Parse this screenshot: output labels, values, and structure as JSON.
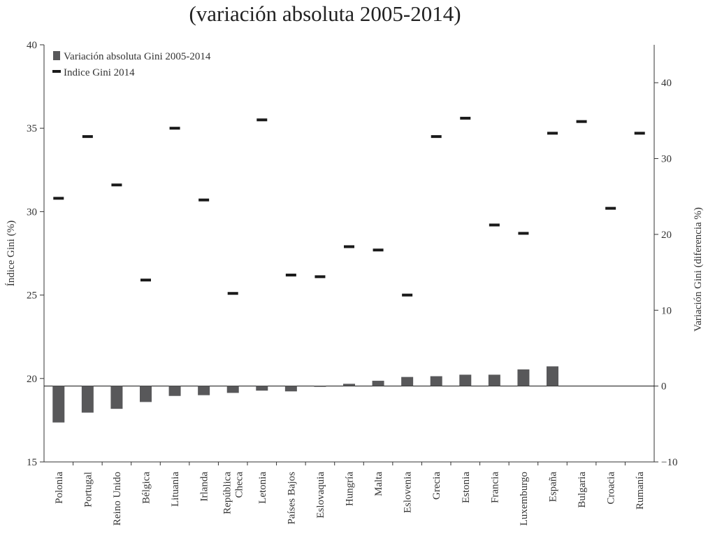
{
  "chart_data": {
    "type": "bar",
    "title": "(variación absoluta 2005-2014)",
    "ylabel_left": "Índice Gini (%)",
    "ylabel_right": "Variación Gini (diferencia %)",
    "left_axis": {
      "range": [
        15,
        40
      ],
      "ticks": [
        "15",
        "20",
        "25",
        "30",
        "35",
        "40"
      ]
    },
    "right_axis": {
      "range": [
        -10,
        45
      ],
      "ticks": [
        "−10",
        "0",
        "10",
        "20",
        "30",
        "40"
      ]
    },
    "legend": {
      "placement": "top-left",
      "bar_label": "Variación absoluta Gini 2005-2014",
      "marker_label": "Indice Gini 2014"
    },
    "categories": [
      "Polonia",
      "Portugal",
      "Reino Unido",
      "Bélgica",
      "Lituania",
      "Irlanda",
      "República Checa",
      "Letonia",
      "Países Bajos",
      "Eslovaquia",
      "Hungría",
      "Malta",
      "Eslovenia",
      "Grecia",
      "Estonia",
      "Francia",
      "Luxemburgo",
      "España",
      "Bulgaria",
      "Croacia",
      "Rumanía"
    ],
    "category_lines": [
      [
        "Polonia"
      ],
      [
        "Portugal"
      ],
      [
        "Reino Unido"
      ],
      [
        "Bélgica"
      ],
      [
        "Lituania"
      ],
      [
        "Irlanda"
      ],
      [
        "República",
        "Checa"
      ],
      [
        "Letonia"
      ],
      [
        "Países Bajos"
      ],
      [
        "Eslovaquia"
      ],
      [
        "Hungría"
      ],
      [
        "Malta"
      ],
      [
        "Eslovenia"
      ],
      [
        "Grecia"
      ],
      [
        "Estonia"
      ],
      [
        "Francia"
      ],
      [
        "Luxemburgo"
      ],
      [
        "España"
      ],
      [
        "Bulgaria"
      ],
      [
        "Croacia"
      ],
      [
        "Rumanía"
      ]
    ],
    "series": [
      {
        "name": "Variación absoluta Gini 2005-2014",
        "axis": "right",
        "kind": "bar",
        "values": [
          -4.8,
          -3.5,
          -3.0,
          -2.1,
          -1.3,
          -1.2,
          -0.9,
          -0.6,
          -0.7,
          -0.1,
          0.3,
          0.7,
          1.2,
          1.3,
          1.5,
          1.5,
          2.2,
          2.6,
          null,
          null,
          null
        ]
      },
      {
        "name": "Indice Gini 2014",
        "axis": "left",
        "kind": "marker",
        "values": [
          30.8,
          34.5,
          31.6,
          25.9,
          35.0,
          30.7,
          25.1,
          35.5,
          26.2,
          26.1,
          27.9,
          27.7,
          25.0,
          34.5,
          35.6,
          29.2,
          28.7,
          34.7,
          35.4,
          30.2,
          34.7
        ]
      }
    ],
    "colors": {
      "bar": "#58585a",
      "marker": "#1a1a1a",
      "axis": "#333333"
    }
  }
}
